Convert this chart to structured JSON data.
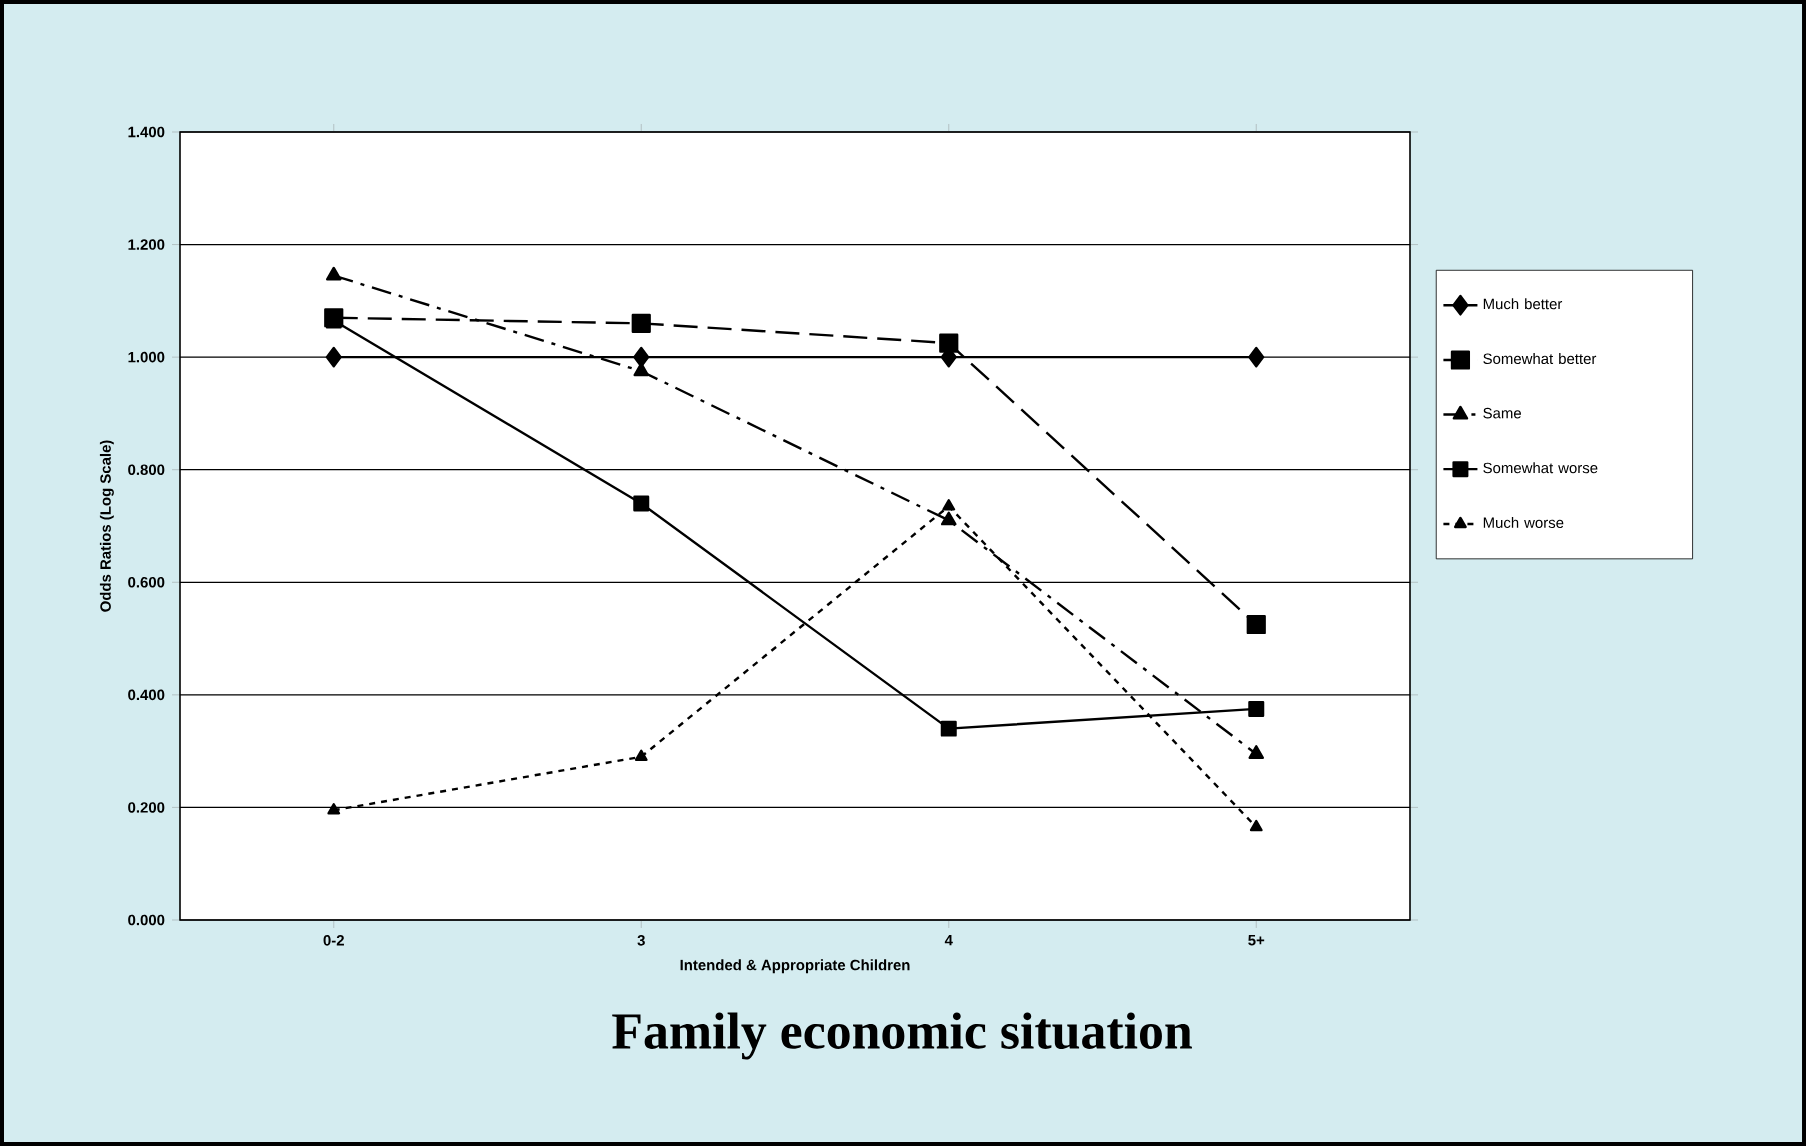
{
  "chart_data": {
    "type": "line",
    "title": "Family economic situation",
    "xlabel": "Intended & Appropriate Children",
    "ylabel": "Odds Ratios (Log Scale)",
    "categories": [
      "0-2",
      "3",
      "4",
      "5+"
    ],
    "series": [
      {
        "name": "Much better",
        "color": "#000000",
        "marker": "diamond",
        "line_style": "solid",
        "values": [
          1.0,
          1.0,
          1.0,
          1.0
        ]
      },
      {
        "name": "Somewhat better",
        "color": "#000000",
        "marker": "square",
        "line_style": "dashed",
        "values": [
          1.07,
          1.06,
          1.025,
          0.525
        ]
      },
      {
        "name": "Same",
        "color": "#000000",
        "marker": "triangle",
        "line_style": "dashdot",
        "values": [
          1.145,
          0.975,
          0.71,
          0.295
        ]
      },
      {
        "name": "Somewhat worse",
        "color": "#000000",
        "marker": "square",
        "line_style": "solid",
        "values": [
          1.065,
          0.74,
          0.34,
          0.375
        ]
      },
      {
        "name": "Much worse",
        "color": "#000000",
        "marker": "triangle",
        "line_style": "dotted",
        "values": [
          0.195,
          0.29,
          0.735,
          0.165
        ]
      }
    ],
    "ylim": [
      0,
      1.4
    ],
    "yticks": [
      {
        "value": 0,
        "label": "0.000"
      },
      {
        "value": 0.2,
        "label": "0.200"
      },
      {
        "value": 0.4,
        "label": "0.400"
      },
      {
        "value": 0.6,
        "label": "0.600"
      },
      {
        "value": 0.8,
        "label": "0.800"
      },
      {
        "value": 1.0,
        "label": "1.000"
      },
      {
        "value": 1.2,
        "label": "1.200"
      },
      {
        "value": 1.4,
        "label": "1.400"
      }
    ],
    "grid": "y",
    "legend": "right"
  }
}
